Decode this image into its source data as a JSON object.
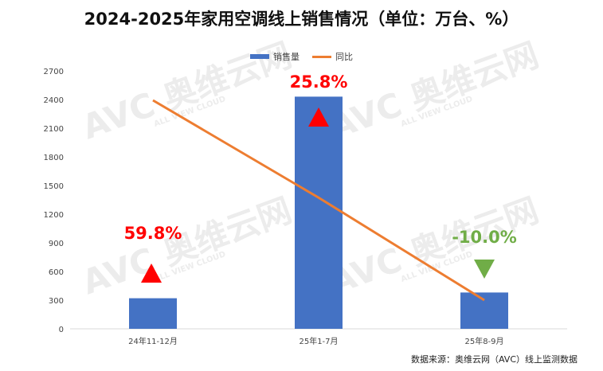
{
  "chart_data": {
    "type": "bar",
    "title": "2024-2025年家用空调线上销售情况（单位：万台、%）",
    "categories": [
      "24年11-12月",
      "25年1-7月",
      "25年8-9月"
    ],
    "series": [
      {
        "name": "销售量",
        "type": "bar",
        "values": [
          320,
          2430,
          380
        ],
        "color": "#4472C4"
      },
      {
        "name": "同比",
        "type": "line",
        "values": [
          59.8,
          25.8,
          -10.0
        ],
        "color": "#ED7D31",
        "axis": "secondary-hidden"
      }
    ],
    "data_labels": [
      "59.8%",
      "25.8%",
      "-10.0%"
    ],
    "label_colors": [
      "#FF0000",
      "#FF0000",
      "#70AD47"
    ],
    "markers": [
      "up",
      "up",
      "down"
    ],
    "yticks": [
      0,
      300,
      600,
      900,
      1200,
      1500,
      1800,
      2100,
      2400,
      2700
    ],
    "ylim": [
      0,
      2700
    ],
    "grid": false,
    "legend": "top-center",
    "xlabel": "",
    "ylabel": ""
  },
  "source": "数据来源：奥维云网（AVC）线上监测数据",
  "watermark": {
    "brand": "奥维云网",
    "sub": "ALL VIEW CLOUD",
    "logo": "AVC"
  }
}
